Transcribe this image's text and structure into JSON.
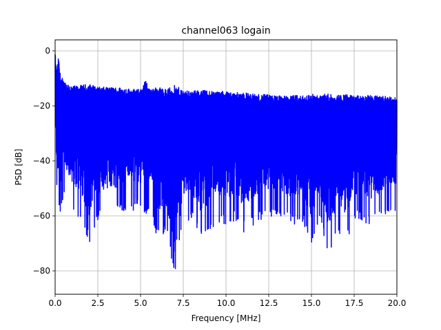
{
  "chart_data": {
    "type": "line",
    "title": "channel063 logain",
    "xlabel": "Frequency [MHz]",
    "ylabel": "PSD [dB]",
    "xlim": [
      0,
      20
    ],
    "ylim": [
      -88.5,
      4
    ],
    "x_ticks": [
      0,
      2.5,
      5,
      7.5,
      10,
      12.5,
      15,
      17.5,
      20
    ],
    "x_tick_labels": [
      "0.0",
      "2.5",
      "5.0",
      "7.5",
      "10.0",
      "12.5",
      "15.0",
      "17.5",
      "20.0"
    ],
    "y_ticks": [
      0,
      -20,
      -40,
      -60,
      -80
    ],
    "y_tick_labels": [
      "0",
      "−20",
      "−40",
      "−60",
      "−80"
    ],
    "grid": true,
    "series": [
      {
        "color": "#0000ff",
        "envelope_x": [
          0.0,
          0.05,
          0.1,
          0.15,
          0.2,
          0.3,
          0.5,
          0.8,
          1.0,
          1.5,
          2.0,
          2.5,
          3.0,
          3.5,
          4.0,
          4.5,
          5.0,
          5.3,
          5.5,
          6.0,
          6.5,
          7.0,
          7.5,
          8.0,
          8.5,
          9.0,
          9.5,
          10.0,
          10.5,
          11.0,
          11.5,
          12.0,
          12.5,
          13.0,
          13.5,
          14.0,
          14.5,
          15.0,
          15.5,
          16.0,
          16.5,
          17.0,
          17.5,
          18.0,
          18.5,
          19.0,
          19.5,
          20.0
        ],
        "upper_envelope": [
          -3,
          -8,
          -10,
          -8,
          -6,
          -12,
          -14,
          -15,
          -16,
          -16,
          -16,
          -16.5,
          -16.5,
          -16.5,
          -16.5,
          -17,
          -17,
          -14,
          -17,
          -17,
          -17.5,
          -17.5,
          -17.5,
          -18,
          -18,
          -18,
          -18,
          -18,
          -18.5,
          -18.5,
          -19,
          -19,
          -19,
          -19.5,
          -19.5,
          -19.5,
          -19.5,
          -19.5,
          -19.5,
          -19.5,
          -19.5,
          -19.5,
          -19.5,
          -19.5,
          -19.5,
          -19.5,
          -19.5,
          -20
        ],
        "lower_envelope": [
          -40,
          -48,
          -52,
          -55,
          -58,
          -60,
          -55,
          -55,
          -58,
          -62,
          -70,
          -62,
          -60,
          -60,
          -58,
          -58,
          -58,
          -60,
          -60,
          -68,
          -66,
          -84,
          -62,
          -62,
          -68,
          -66,
          -62,
          -64,
          -62,
          -66,
          -64,
          -62,
          -60,
          -62,
          -62,
          -64,
          -62,
          -72,
          -62,
          -76,
          -66,
          -70,
          -62,
          -62,
          -64,
          -62,
          -60,
          -58
        ]
      }
    ]
  }
}
